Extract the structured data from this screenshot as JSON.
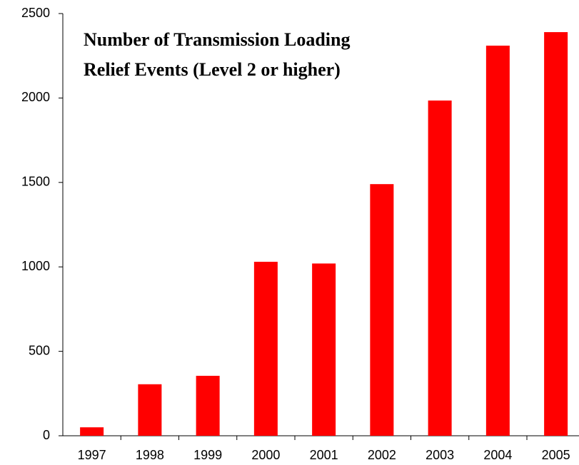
{
  "chart_data": {
    "type": "bar",
    "title": [
      "Number of Transmission Loading",
      "Relief Events (Level 2 or higher)"
    ],
    "categories": [
      "1997",
      "1998",
      "1999",
      "2000",
      "2001",
      "2002",
      "2003",
      "2004",
      "2005"
    ],
    "values": [
      50,
      305,
      355,
      1030,
      1020,
      1490,
      1985,
      2310,
      2390
    ],
    "color": "#ff0000",
    "ylim": [
      0,
      2500
    ],
    "yticks": [
      0,
      500,
      1000,
      1500,
      2000,
      2500
    ],
    "grid": false
  }
}
